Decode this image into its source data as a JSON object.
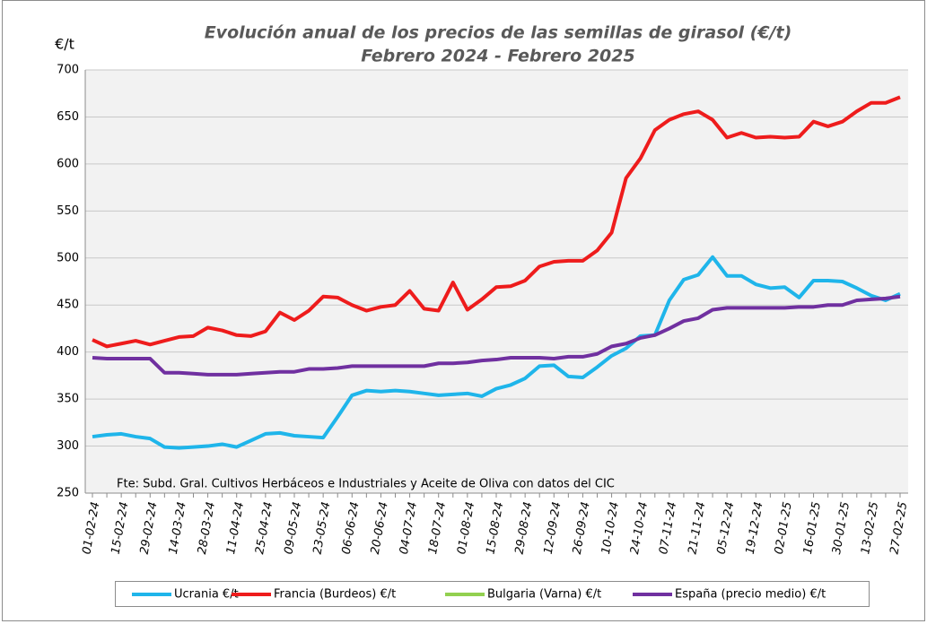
{
  "chart_data": {
    "type": "line",
    "title": "Evolución anual de los precios de las semillas de girasol (€/t)",
    "subtitle": "Febrero 2024 - Febrero 2025",
    "y_label": "€/t",
    "annotation": "Fte: Subd. Gral. Cultivos Herbáceos e Industriales y Aceite de Oliva con datos del CIC",
    "categories": [
      "01-02-24",
      null,
      "15-02-24",
      null,
      "29-02-24",
      null,
      "14-03-24",
      null,
      "28-03-24",
      null,
      "11-04-24",
      null,
      "25-04-24",
      null,
      "09-05-24",
      null,
      "23-05-24",
      null,
      "06-06-24",
      null,
      "20-06-24",
      null,
      "04-07-24",
      null,
      "18-07-24",
      null,
      "01-08-24",
      null,
      "15-08-24",
      null,
      "29-08-24",
      null,
      "12-09-24",
      null,
      "26-09-24",
      null,
      "10-10-24",
      null,
      "24-10-24",
      null,
      "07-11-24",
      null,
      "21-11-24",
      null,
      "05-12-24",
      null,
      "19-12-24",
      null,
      "02-01-25",
      null,
      "16-01-25",
      null,
      "30-01-25",
      null,
      "13-02-25",
      null,
      "27-02-25"
    ],
    "series": [
      {
        "name": "Ucrania €/t",
        "color": "#1fb5ea",
        "values": [
          310,
          312,
          313,
          310,
          308,
          299,
          298,
          299,
          300,
          302,
          299,
          306,
          313,
          314,
          311,
          310,
          309,
          331,
          354,
          359,
          358,
          359,
          358,
          356,
          354,
          355,
          356,
          353,
          361,
          365,
          372,
          385,
          386,
          374,
          373,
          384,
          396,
          404,
          417,
          418,
          455,
          477,
          482,
          501,
          481,
          481,
          472,
          468,
          469,
          458,
          476,
          476,
          475,
          468,
          460,
          455,
          462
        ]
      },
      {
        "name": "Francia (Burdeos) €/t",
        "color": "#ee1c1c",
        "values": [
          413,
          406,
          409,
          412,
          408,
          412,
          416,
          417,
          426,
          423,
          418,
          417,
          422,
          442,
          434,
          444,
          459,
          458,
          450,
          444,
          448,
          450,
          465,
          446,
          444,
          474,
          445,
          456,
          469,
          470,
          476,
          491,
          496,
          497,
          497,
          508,
          527,
          585,
          606,
          636,
          647,
          653,
          656,
          647,
          628,
          633,
          628,
          629,
          628,
          629,
          645,
          640,
          645,
          656,
          665,
          665,
          671
        ]
      },
      {
        "name": "Bulgaria (Varna) €/t",
        "color": "#92d050",
        "values": [
          null,
          null,
          null,
          null,
          null,
          null,
          null,
          null,
          null,
          null,
          null,
          null,
          null,
          null,
          null,
          null,
          null,
          null,
          null,
          null,
          null,
          null,
          null,
          null,
          null,
          null,
          null,
          null,
          null,
          null,
          null,
          null,
          null,
          null,
          null,
          null,
          null,
          null,
          null,
          null,
          null,
          null,
          null,
          null,
          null,
          null,
          null,
          null,
          null,
          null,
          null,
          null,
          null,
          null,
          null,
          null,
          null
        ]
      },
      {
        "name": "España (precio medio) €/t",
        "color": "#7030a0",
        "values": [
          394,
          393,
          393,
          393,
          393,
          378,
          378,
          377,
          376,
          376,
          376,
          377,
          378,
          379,
          379,
          382,
          382,
          383,
          385,
          385,
          385,
          385,
          385,
          385,
          388,
          388,
          389,
          391,
          392,
          394,
          394,
          394,
          393,
          395,
          395,
          398,
          406,
          409,
          415,
          418,
          425,
          433,
          436,
          445,
          447,
          447,
          447,
          447,
          447,
          448,
          448,
          450,
          450,
          455,
          456,
          457,
          459
        ]
      }
    ],
    "ylim": [
      250,
      700
    ],
    "yticks": [
      250,
      300,
      350,
      400,
      450,
      500,
      550,
      600,
      650,
      700
    ],
    "grid": true
  }
}
